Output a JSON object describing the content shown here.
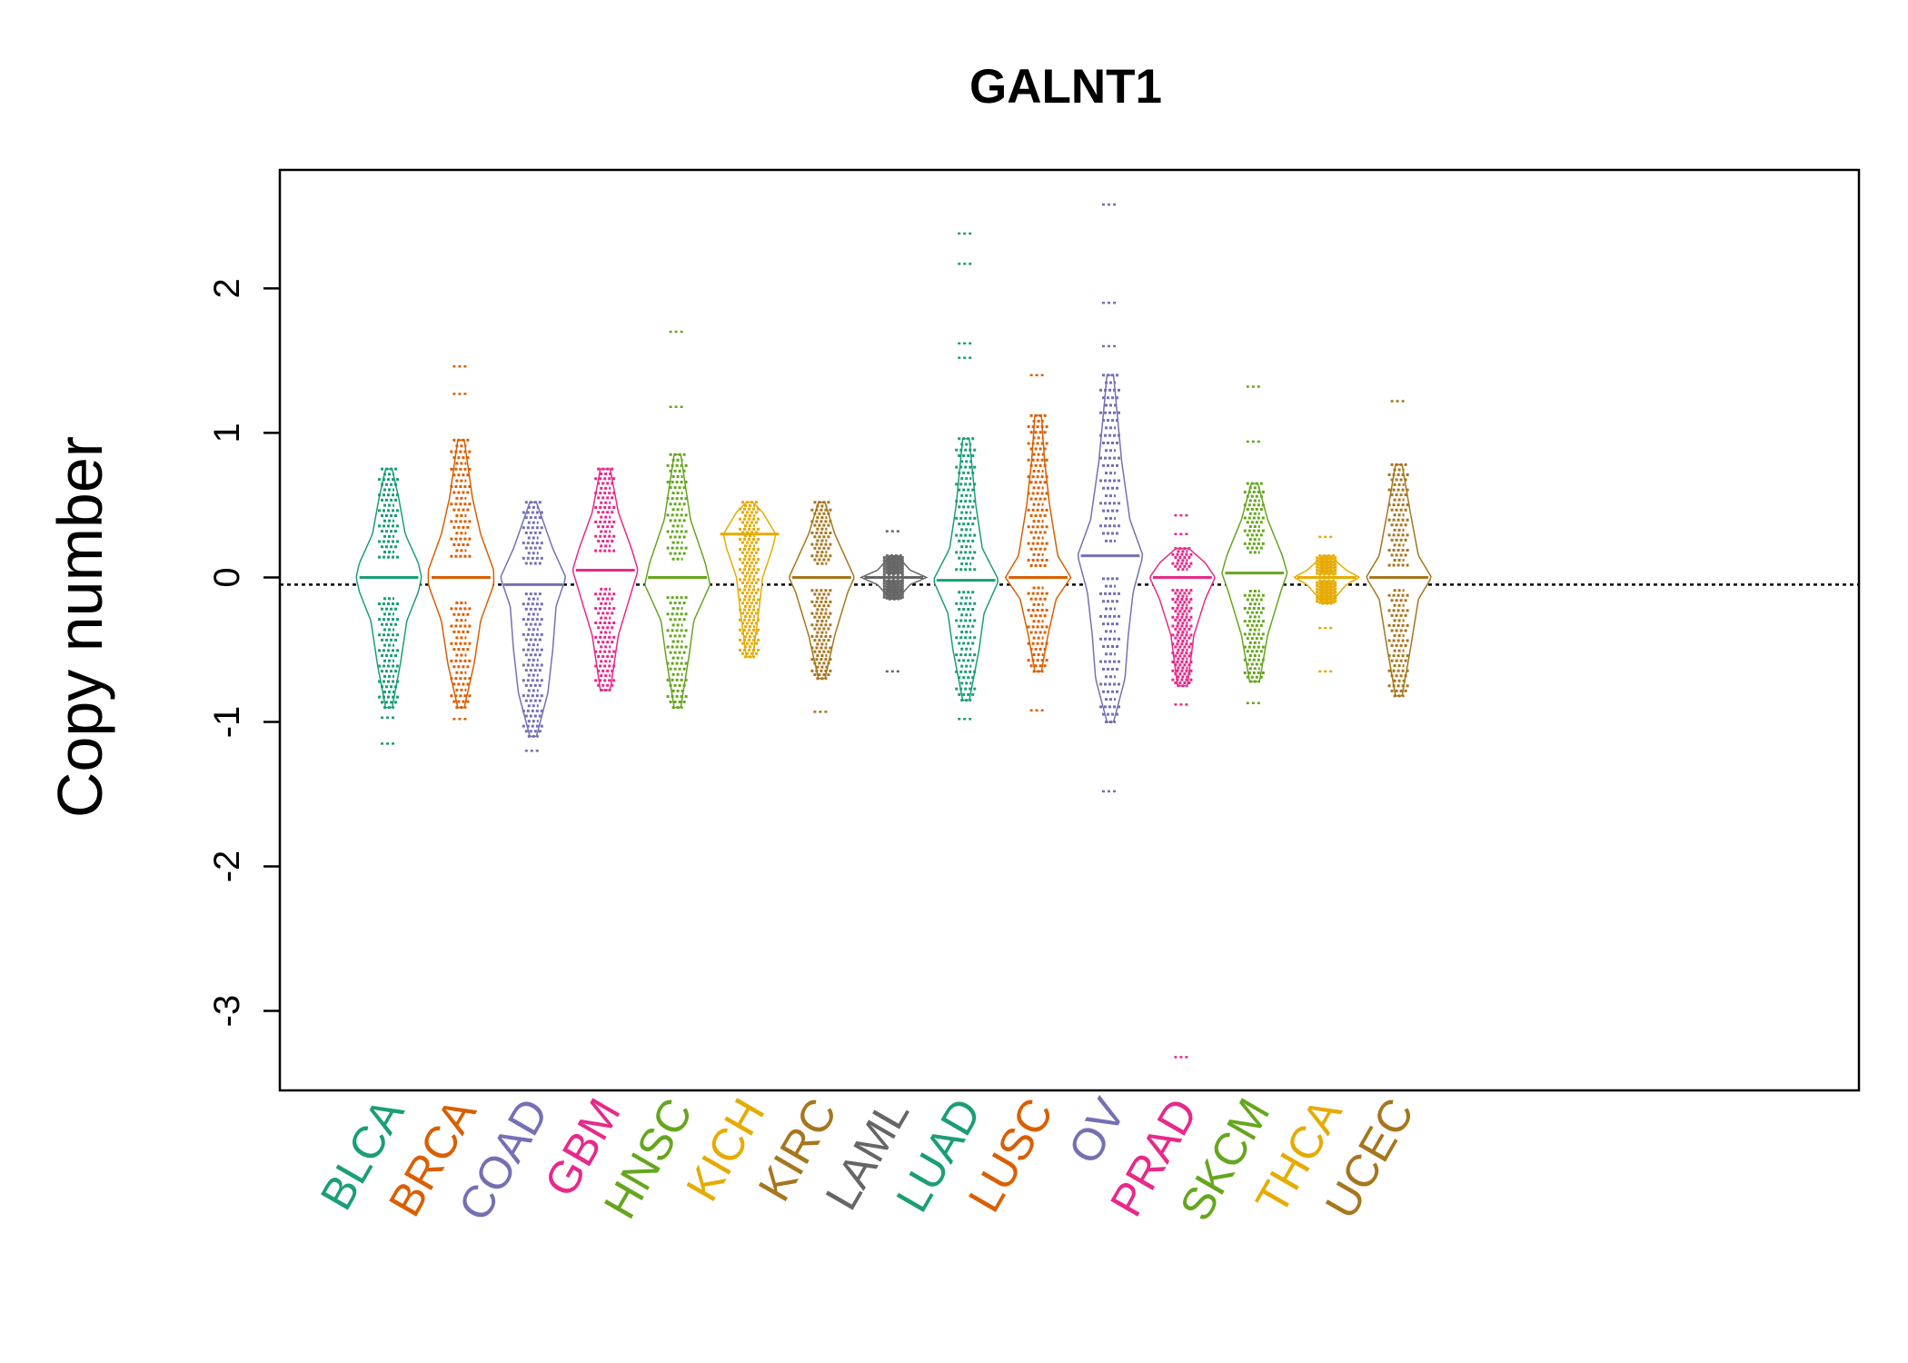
{
  "chart_data": {
    "type": "beanplot",
    "title": "GALNT1",
    "xlabel": "",
    "ylabel": "Copy number",
    "ylim": [
      -3.55,
      2.82
    ],
    "yticks": [
      -3,
      -2,
      -1,
      0,
      1,
      2
    ],
    "overall_median_line": -0.05,
    "categories": [
      "BLCA",
      "BRCA",
      "COAD",
      "GBM",
      "HNSC",
      "KICH",
      "KIRC",
      "LAML",
      "LUAD",
      "LUSC",
      "OV",
      "PRAD",
      "SKCM",
      "THCA",
      "UCEC"
    ],
    "groups": [
      {
        "name": "BLCA",
        "color": "#1B9E77",
        "min": -0.9,
        "max": 0.75,
        "median": 0.0,
        "density": [
          [
            -0.9,
            0.1
          ],
          [
            -0.6,
            0.35
          ],
          [
            -0.3,
            0.55
          ],
          [
            -0.1,
            0.9
          ],
          [
            0.0,
            1.0
          ],
          [
            0.1,
            0.9
          ],
          [
            0.3,
            0.5
          ],
          [
            0.55,
            0.3
          ],
          [
            0.75,
            0.1
          ]
        ],
        "outliers": [
          -1.15,
          -0.97
        ]
      },
      {
        "name": "BRCA",
        "color": "#D95F02",
        "min": -0.9,
        "max": 0.95,
        "median": 0.0,
        "density": [
          [
            -0.9,
            0.1
          ],
          [
            -0.6,
            0.4
          ],
          [
            -0.3,
            0.6
          ],
          [
            -0.05,
            1.0
          ],
          [
            0.05,
            1.0
          ],
          [
            0.3,
            0.6
          ],
          [
            0.55,
            0.35
          ],
          [
            0.95,
            0.1
          ]
        ],
        "outliers": [
          -0.98,
          1.27,
          1.46
        ]
      },
      {
        "name": "COAD",
        "color": "#7570B3",
        "min": -1.1,
        "max": 0.52,
        "median": -0.05,
        "density": [
          [
            -1.1,
            0.1
          ],
          [
            -0.8,
            0.45
          ],
          [
            -0.5,
            0.6
          ],
          [
            -0.2,
            0.7
          ],
          [
            0.0,
            1.0
          ],
          [
            0.2,
            0.6
          ],
          [
            0.52,
            0.1
          ]
        ],
        "outliers": [
          -1.2
        ]
      },
      {
        "name": "GBM",
        "color": "#E7298A",
        "min": -0.78,
        "max": 0.75,
        "median": 0.05,
        "density": [
          [
            -0.78,
            0.15
          ],
          [
            -0.4,
            0.4
          ],
          [
            -0.1,
            0.8
          ],
          [
            0.05,
            1.0
          ],
          [
            0.2,
            0.8
          ],
          [
            0.45,
            0.4
          ],
          [
            0.75,
            0.15
          ]
        ],
        "outliers": []
      },
      {
        "name": "HNSC",
        "color": "#66A61E",
        "min": -0.9,
        "max": 0.85,
        "median": 0.0,
        "density": [
          [
            -0.9,
            0.1
          ],
          [
            -0.55,
            0.35
          ],
          [
            -0.3,
            0.5
          ],
          [
            -0.05,
            1.0
          ],
          [
            0.1,
            0.85
          ],
          [
            0.4,
            0.4
          ],
          [
            0.85,
            0.1
          ]
        ],
        "outliers": [
          1.18,
          1.7
        ]
      },
      {
        "name": "KICH",
        "color": "#E6AB02",
        "min": -0.55,
        "max": 0.52,
        "median": 0.3,
        "density": [
          [
            -0.55,
            0.1
          ],
          [
            -0.2,
            0.3
          ],
          [
            0.0,
            0.4
          ],
          [
            0.2,
            0.7
          ],
          [
            0.3,
            0.8
          ],
          [
            0.45,
            0.4
          ],
          [
            0.52,
            0.1
          ]
        ],
        "outliers": []
      },
      {
        "name": "KIRC",
        "color": "#A6761D",
        "min": -0.7,
        "max": 0.52,
        "median": 0.0,
        "density": [
          [
            -0.7,
            0.1
          ],
          [
            -0.4,
            0.4
          ],
          [
            -0.1,
            0.8
          ],
          [
            0.0,
            1.0
          ],
          [
            0.1,
            0.8
          ],
          [
            0.3,
            0.4
          ],
          [
            0.52,
            0.1
          ]
        ],
        "outliers": [
          -0.93
        ]
      },
      {
        "name": "LAML",
        "color": "#666666",
        "min": -0.15,
        "max": 0.15,
        "median": 0.0,
        "density": [
          [
            -0.15,
            0.1
          ],
          [
            -0.05,
            0.5
          ],
          [
            0.0,
            1.0
          ],
          [
            0.05,
            0.5
          ],
          [
            0.15,
            0.1
          ]
        ],
        "outliers": [
          -0.65,
          0.32
        ]
      },
      {
        "name": "LUAD",
        "color": "#1B9E77",
        "min": -0.85,
        "max": 0.96,
        "median": -0.02,
        "density": [
          [
            -0.85,
            0.1
          ],
          [
            -0.5,
            0.4
          ],
          [
            -0.25,
            0.55
          ],
          [
            -0.02,
            1.0
          ],
          [
            0.2,
            0.5
          ],
          [
            0.5,
            0.3
          ],
          [
            0.96,
            0.1
          ]
        ],
        "outliers": [
          -0.98,
          1.52,
          1.62,
          2.17,
          2.38
        ]
      },
      {
        "name": "LUSC",
        "color": "#D95F02",
        "min": -0.65,
        "max": 1.12,
        "median": 0.0,
        "density": [
          [
            -0.65,
            0.1
          ],
          [
            -0.4,
            0.3
          ],
          [
            -0.15,
            0.55
          ],
          [
            0.0,
            1.0
          ],
          [
            0.15,
            0.6
          ],
          [
            0.5,
            0.35
          ],
          [
            0.8,
            0.2
          ],
          [
            1.12,
            0.1
          ]
        ],
        "outliers": [
          -0.92,
          1.4
        ]
      },
      {
        "name": "OV",
        "color": "#7570B3",
        "min": -1.0,
        "max": 1.4,
        "median": 0.15,
        "density": [
          [
            -1.0,
            0.1
          ],
          [
            -0.7,
            0.45
          ],
          [
            -0.4,
            0.55
          ],
          [
            -0.1,
            0.7
          ],
          [
            0.15,
            1.0
          ],
          [
            0.4,
            0.6
          ],
          [
            0.8,
            0.35
          ],
          [
            1.4,
            0.1
          ]
        ],
        "outliers": [
          -1.48,
          1.6,
          1.9,
          2.58
        ]
      },
      {
        "name": "PRAD",
        "color": "#E7298A",
        "min": -0.75,
        "max": 0.2,
        "median": 0.0,
        "density": [
          [
            -0.75,
            0.15
          ],
          [
            -0.4,
            0.35
          ],
          [
            -0.15,
            0.7
          ],
          [
            0.0,
            1.0
          ],
          [
            0.1,
            0.7
          ],
          [
            0.2,
            0.2
          ]
        ],
        "outliers": [
          -0.88,
          0.3,
          0.43,
          -3.32
        ]
      },
      {
        "name": "SKCM",
        "color": "#66A61E",
        "min": -0.72,
        "max": 0.65,
        "median": 0.03,
        "density": [
          [
            -0.72,
            0.15
          ],
          [
            -0.4,
            0.4
          ],
          [
            -0.1,
            0.8
          ],
          [
            0.03,
            1.0
          ],
          [
            0.15,
            0.85
          ],
          [
            0.4,
            0.4
          ],
          [
            0.65,
            0.1
          ]
        ],
        "outliers": [
          -0.87,
          0.94,
          1.32
        ]
      },
      {
        "name": "THCA",
        "color": "#E6AB02",
        "min": -0.18,
        "max": 0.15,
        "median": 0.0,
        "density": [
          [
            -0.18,
            0.1
          ],
          [
            -0.05,
            0.6
          ],
          [
            0.0,
            1.0
          ],
          [
            0.05,
            0.6
          ],
          [
            0.15,
            0.1
          ]
        ],
        "outliers": [
          -0.65,
          -0.35,
          0.28
        ]
      },
      {
        "name": "UCEC",
        "color": "#A6761D",
        "min": -0.82,
        "max": 0.78,
        "median": 0.0,
        "density": [
          [
            -0.82,
            0.1
          ],
          [
            -0.5,
            0.35
          ],
          [
            -0.15,
            0.6
          ],
          [
            0.0,
            1.0
          ],
          [
            0.15,
            0.6
          ],
          [
            0.45,
            0.35
          ],
          [
            0.78,
            0.1
          ]
        ],
        "outliers": [
          1.22
        ]
      }
    ]
  }
}
